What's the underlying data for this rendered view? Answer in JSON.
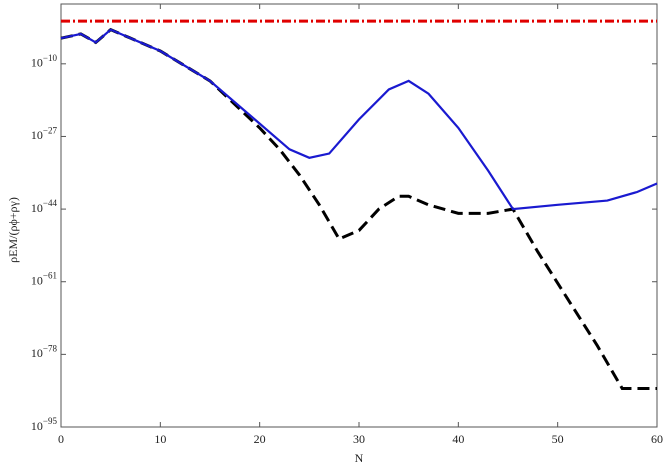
{
  "chart_data": {
    "type": "line",
    "x_label": "N",
    "y_label": "ρEM/(ρϕ+ργ)",
    "log_y": true,
    "xlim": [
      0,
      60
    ],
    "xticks": [
      0,
      10,
      20,
      30,
      40,
      50,
      60
    ],
    "ylim": [
      1e-95,
      10000.0
    ],
    "yticks": [
      {
        "value": 1e-95,
        "label": "10−95"
      },
      {
        "value": 1e-78,
        "label": "10−78"
      },
      {
        "value": 1e-61,
        "label": "10−61"
      },
      {
        "value": 1e-44,
        "label": "10−44"
      },
      {
        "value": 1e-27,
        "label": "10−27"
      },
      {
        "value": 1e-10,
        "label": "10−10"
      }
    ],
    "series": [
      {
        "color": "#e00000",
        "dash": "9 3 2 3",
        "x": [
          0,
          60
        ],
        "values": [
          1,
          1
        ]
      },
      {
        "color": "#000000",
        "dash": "12 6",
        "x": [
          0,
          2,
          3.5,
          5,
          7,
          10,
          15,
          20,
          22,
          24,
          26,
          28,
          30,
          32,
          34,
          35,
          37,
          40,
          43,
          45.5,
          48,
          51,
          54,
          56.5,
          58,
          60
        ],
        "values": [
          0.0001,
          0.001,
          1e-05,
          0.01,
          0.0001,
          1e-07,
          1e-14,
          1e-25,
          1e-30,
          1e-36,
          1e-43,
          1e-51,
          1e-49,
          1e-44,
          1e-41,
          1e-41,
          1e-43,
          1e-45,
          1e-45,
          1e-44,
          1e-54,
          1e-65,
          1e-76,
          1e-86,
          1e-86,
          1e-86
        ]
      },
      {
        "color": "#1a1ad0",
        "dash": "none",
        "x": [
          0,
          2,
          3.5,
          5,
          7,
          10,
          15,
          20,
          23,
          25,
          27,
          30,
          33,
          35,
          37,
          40,
          43,
          45.5,
          50,
          55,
          58,
          60
        ],
        "values": [
          0.0001,
          0.001,
          1e-05,
          0.01,
          0.0001,
          1e-07,
          1e-14,
          1e-24,
          1e-30,
          1e-32,
          1e-31,
          1e-23,
          1e-16,
          1e-14,
          1e-17,
          1e-25,
          1e-35,
          1e-44,
          1e-43,
          1e-42,
          1e-40,
          1e-38
        ]
      }
    ]
  }
}
